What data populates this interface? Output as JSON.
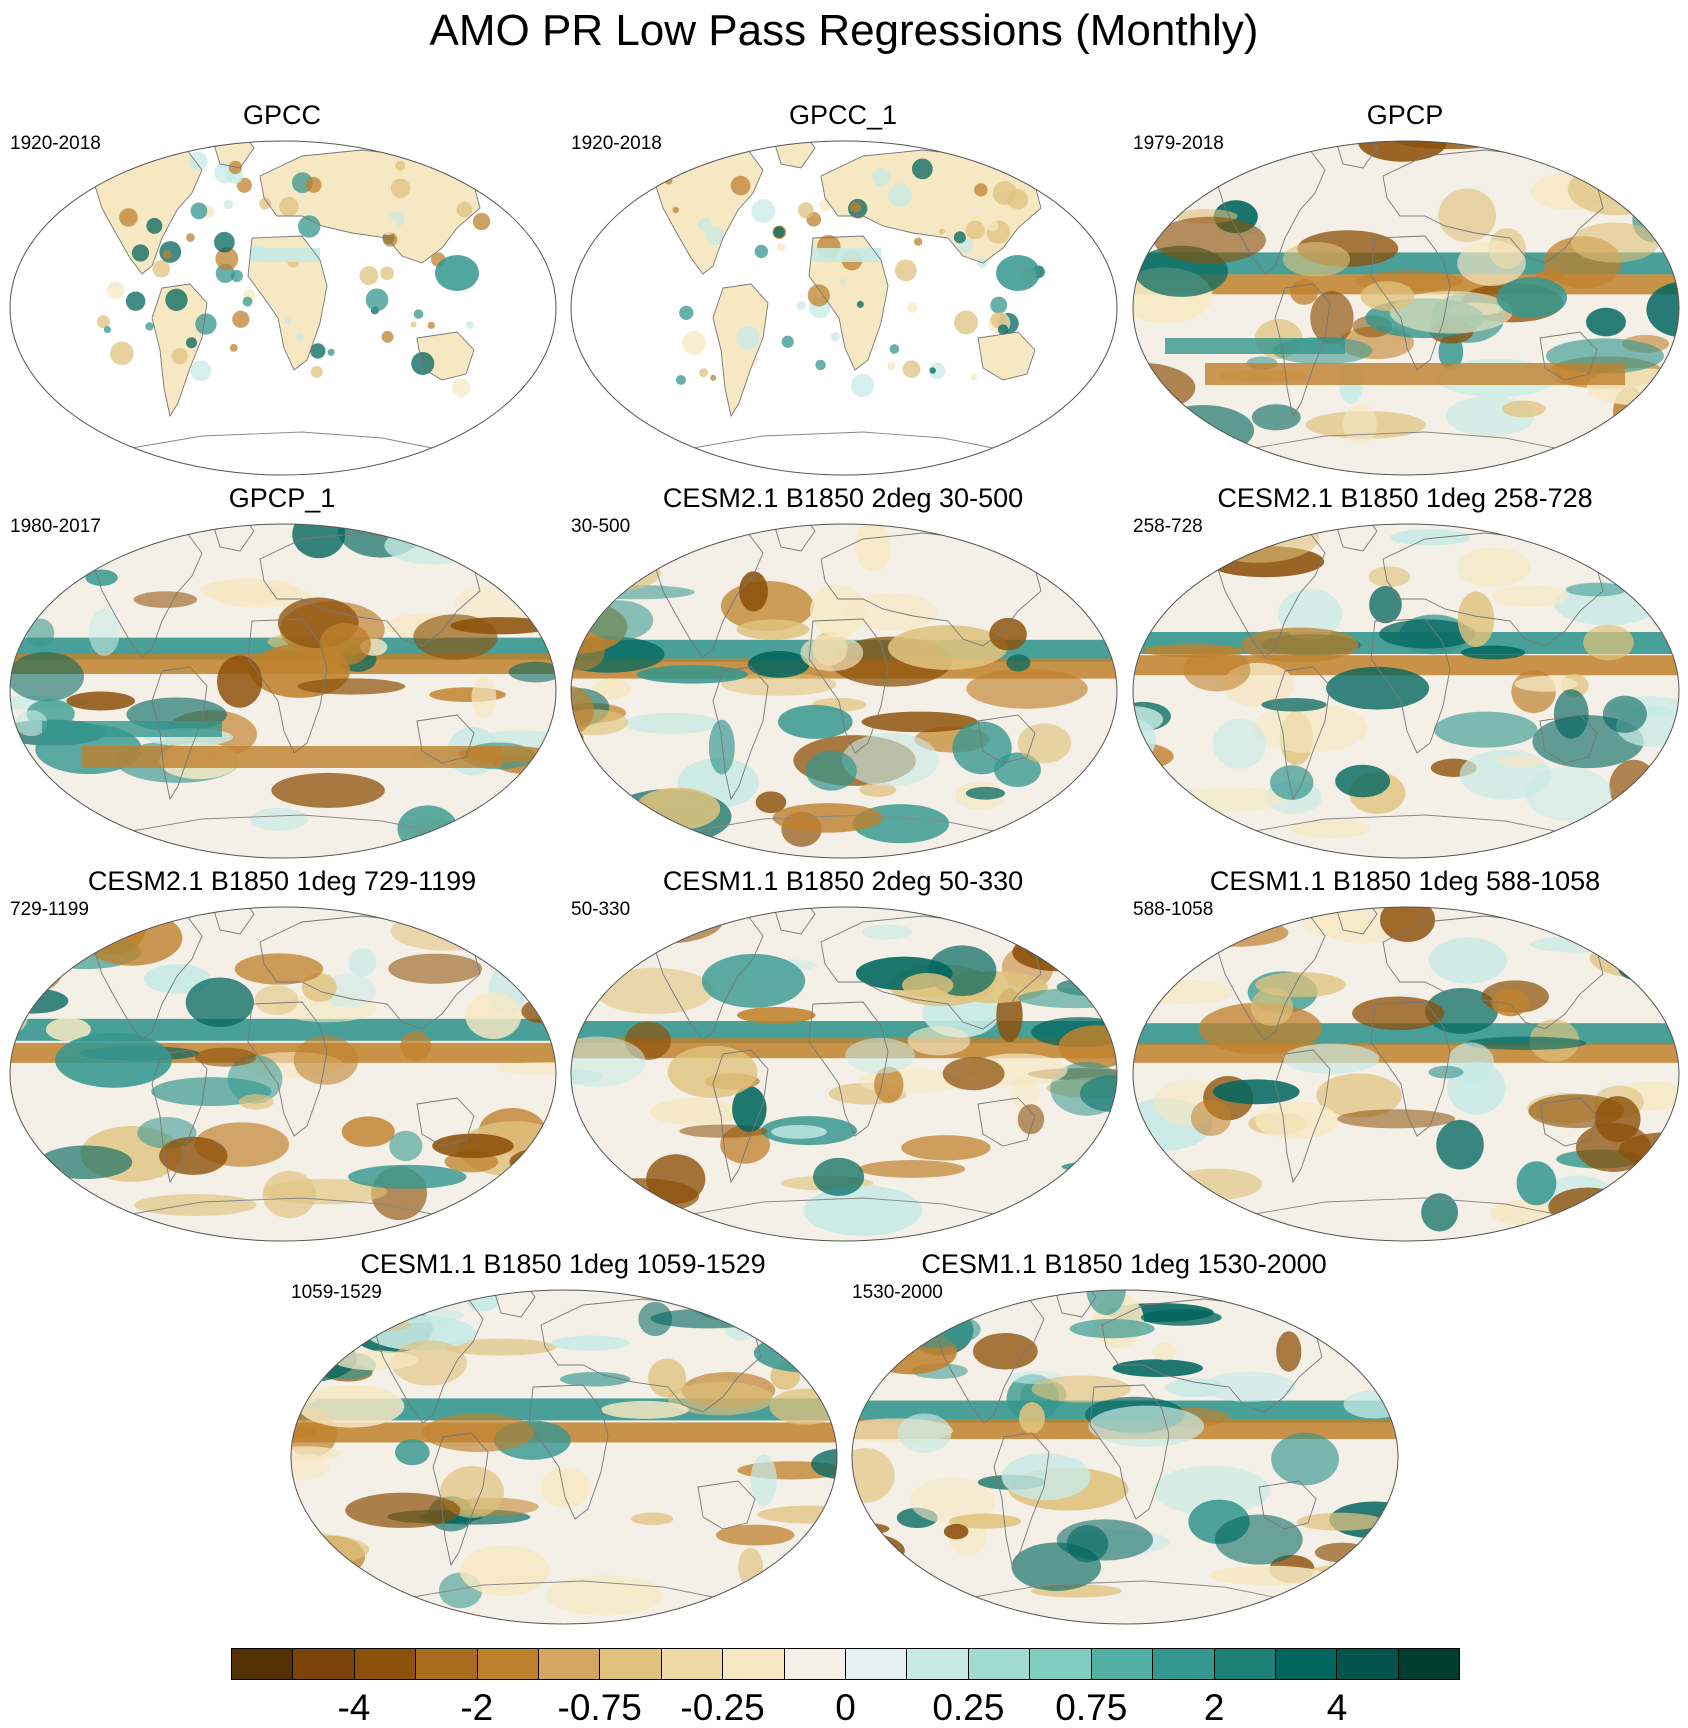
{
  "title": "AMO PR Low Pass Regressions (Monthly)",
  "panels": [
    {
      "title": "GPCC",
      "period": "1920-2018",
      "kind": "land"
    },
    {
      "title": "GPCC_1",
      "period": "1920-2018",
      "kind": "land"
    },
    {
      "title": "GPCP",
      "period": "1979-2018",
      "kind": "full"
    },
    {
      "title": "GPCP_1",
      "period": "1980-2017",
      "kind": "full"
    },
    {
      "title": "CESM2.1 B1850 2deg 30-500",
      "period": "30-500",
      "kind": "model"
    },
    {
      "title": "CESM2.1 B1850 1deg 258-728",
      "period": "258-728",
      "kind": "model"
    },
    {
      "title": "CESM2.1 B1850 1deg 729-1199",
      "period": "729-1199",
      "kind": "model"
    },
    {
      "title": "CESM1.1 B1850 2deg 50-330",
      "period": "50-330",
      "kind": "model"
    },
    {
      "title": "CESM1.1 B1850 1deg 588-1058",
      "period": "588-1058",
      "kind": "model"
    },
    {
      "title": "CESM1.1 B1850 1deg 1059-1529",
      "period": "1059-1529",
      "kind": "model"
    },
    {
      "title": "CESM1.1 B1850 1deg 1530-2000",
      "period": "1530-2000",
      "kind": "model"
    }
  ],
  "colorbar": {
    "colors": [
      "#543005",
      "#7a4309",
      "#8c510a",
      "#a96b1f",
      "#bf812d",
      "#d3a664",
      "#dfc27d",
      "#efd9a6",
      "#f6e8c3",
      "#f5f0e7",
      "#e7f1f0",
      "#c7eae5",
      "#a2dad2",
      "#80cdc1",
      "#52b0a2",
      "#35978f",
      "#1d7f75",
      "#01665e",
      "#02534b",
      "#003c30"
    ],
    "labels": [
      "-4",
      "-2",
      "-0.75",
      "-0.25",
      "0",
      "0.25",
      "0.75",
      "2",
      "4"
    ]
  },
  "colors": {
    "brown_dark": "#8c510a",
    "brown": "#bf812d",
    "tan": "#dfc27d",
    "cream": "#f6e8c3",
    "neutral": "#f5f0e7",
    "aqua_light": "#c7eae5",
    "teal": "#35978f",
    "teal_dark": "#01665e"
  }
}
